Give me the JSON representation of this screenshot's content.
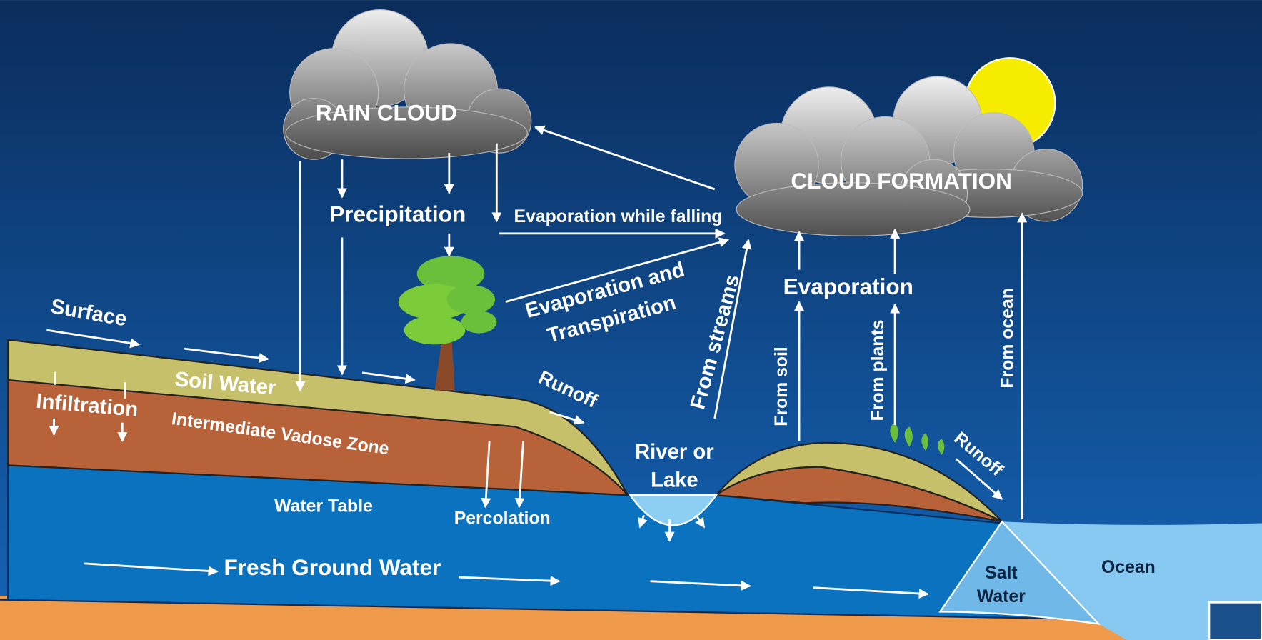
{
  "labels": {
    "rain_cloud": "RAIN CLOUD",
    "precipitation": "Precipitation",
    "evaporation_while_falling": "Evaporation while falling",
    "cloud_formation": "CLOUD FORMATION",
    "evaporation_and_transpiration": [
      "Evaporation and",
      "Transpiration"
    ],
    "from_streams": "From streams",
    "evaporation": "Evaporation",
    "from_soil": "From soil",
    "from_plants": "From plants",
    "from_ocean": "From ocean",
    "surface": "Surface",
    "soil_water": "Soil Water",
    "infiltration": "Infiltration",
    "vadose_zone": "Intermediate Vadose Zone",
    "runoff_left": "Runoff",
    "river_or_lake": [
      "River or",
      "Lake"
    ],
    "runoff_right": "Runoff",
    "water_table": "Water Table",
    "percolation": "Percolation",
    "fresh_ground_water": "Fresh Ground Water",
    "salt_water": [
      "Salt",
      "Water"
    ],
    "ocean": "Ocean"
  }
}
